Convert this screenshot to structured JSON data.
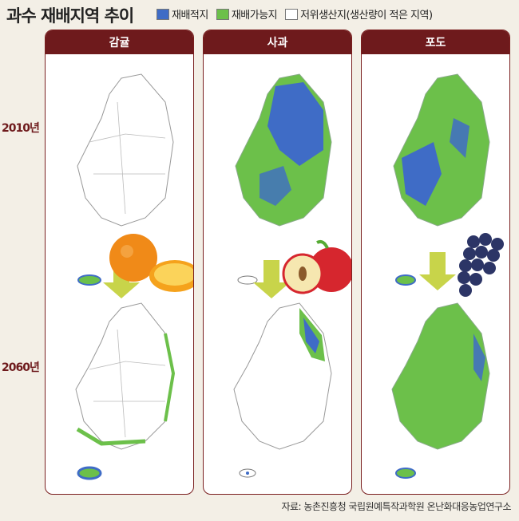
{
  "title": "과수 재배지역 추이",
  "legend": [
    {
      "label": "재배적지",
      "color": "#3f6cc6"
    },
    {
      "label": "재배가능지",
      "color": "#6cc04a"
    },
    {
      "label": "저위생산지(생산량이 적은 지역)",
      "color": "#ffffff"
    }
  ],
  "panels": [
    {
      "label": "감귤",
      "fruit_icon": "orange-icon"
    },
    {
      "label": "사과",
      "fruit_icon": "apple-icon"
    },
    {
      "label": "포도",
      "fruit_icon": "grape-icon"
    }
  ],
  "years": [
    "2010년",
    "2060년"
  ],
  "source": "자료: 농촌진흥청 국립원예특작과학원 온난화대응농업연구소"
}
